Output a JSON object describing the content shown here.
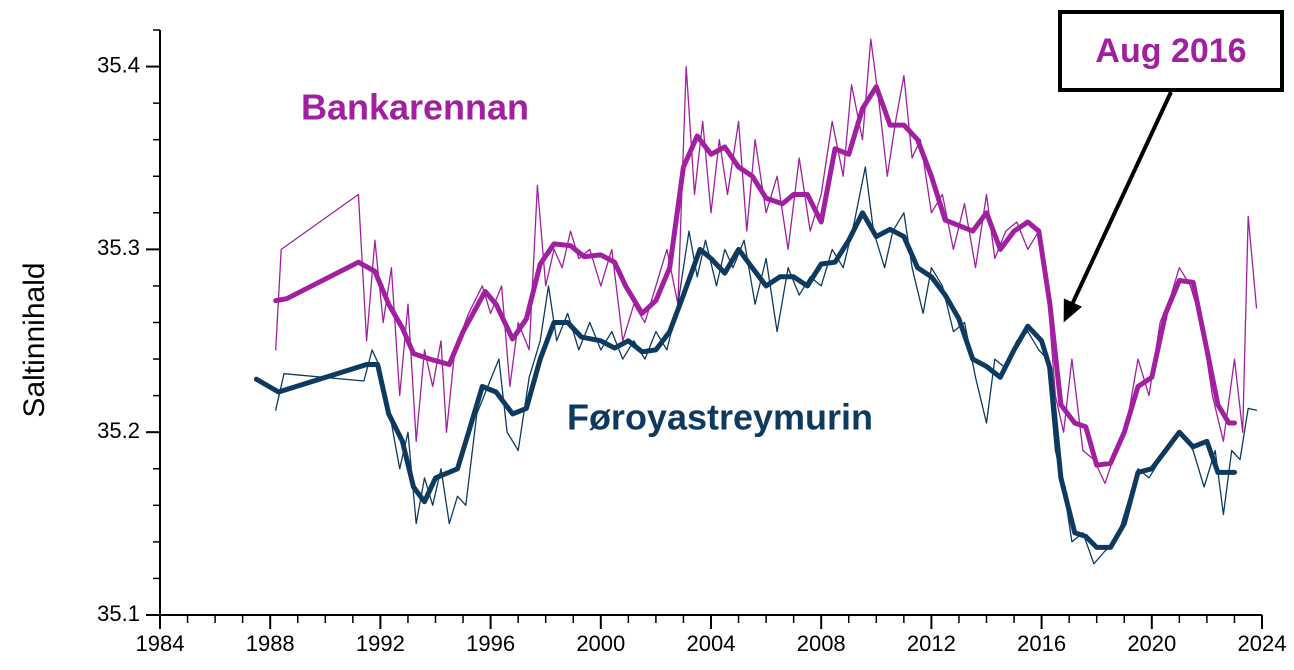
{
  "chart_data": {
    "type": "line",
    "ylabel": "Saltinnihald",
    "xlim": [
      1984,
      2024
    ],
    "xticks": [
      1984,
      1988,
      1992,
      1996,
      2000,
      2004,
      2008,
      2012,
      2016,
      2020,
      2024
    ],
    "xminorticks": [
      1985,
      1986,
      1987,
      1989,
      1990,
      1991,
      1993,
      1994,
      1995,
      1997,
      1998,
      1999,
      2001,
      2002,
      2003,
      2005,
      2006,
      2007,
      2009,
      2010,
      2011,
      2013,
      2014,
      2015,
      2017,
      2018,
      2019,
      2021,
      2022,
      2023
    ],
    "ylim": [
      35.1,
      35.42
    ],
    "yticks": [
      35.1,
      35.2,
      35.3,
      35.4
    ],
    "yminorticks": [
      35.12,
      35.14,
      35.16,
      35.18,
      35.22,
      35.24,
      35.26,
      35.28,
      35.32,
      35.34,
      35.36,
      35.38,
      35.42
    ],
    "annotation": {
      "text": "Aug 2016",
      "x": 2016.8,
      "y": 35.26
    },
    "series": [
      {
        "color": "#a020a0",
        "line_width": 1.3,
        "x": [
          1988.2,
          1988.4,
          1991.2,
          1991.5,
          1991.8,
          1992.1,
          1992.4,
          1992.7,
          1993.0,
          1993.3,
          1993.6,
          1993.9,
          1994.2,
          1994.4,
          1994.7,
          1995.2,
          1995.7,
          1996.0,
          1996.4,
          1996.7,
          1997.0,
          1997.4,
          1997.7,
          1998.0,
          1998.3,
          1998.6,
          1998.9,
          1999.2,
          1999.6,
          2000.0,
          2000.4,
          2000.8,
          2001.2,
          2001.6,
          2002.0,
          2002.4,
          2002.8,
          2003.1,
          2003.4,
          2003.7,
          2004.0,
          2004.3,
          2004.6,
          2005.0,
          2005.3,
          2005.6,
          2006.0,
          2006.4,
          2006.8,
          2007.2,
          2007.6,
          2008.0,
          2008.4,
          2008.8,
          2009.1,
          2009.5,
          2009.8,
          2010.1,
          2010.4,
          2010.7,
          2011.0,
          2011.3,
          2011.6,
          2012.0,
          2012.4,
          2012.8,
          2013.2,
          2013.6,
          2014.0,
          2014.3,
          2014.7,
          2015.1,
          2015.5,
          2015.9,
          2016.2,
          2016.5,
          2016.8,
          2017.1,
          2017.5,
          2017.9,
          2018.3,
          2018.7,
          2019.1,
          2019.5,
          2019.9,
          2020.3,
          2020.7,
          2021.0,
          2021.4,
          2021.8,
          2022.2,
          2022.6,
          2023.0,
          2023.3,
          2023.5,
          2023.8
        ],
        "values": [
          35.245,
          35.3,
          35.33,
          35.25,
          35.305,
          35.26,
          35.29,
          35.22,
          35.27,
          35.195,
          35.245,
          35.225,
          35.25,
          35.2,
          35.245,
          35.265,
          35.28,
          35.265,
          35.28,
          35.225,
          35.26,
          35.245,
          35.335,
          35.28,
          35.3,
          35.29,
          35.31,
          35.295,
          35.3,
          35.28,
          35.3,
          35.25,
          35.27,
          35.26,
          35.28,
          35.3,
          35.27,
          35.4,
          35.33,
          35.37,
          35.32,
          35.36,
          35.33,
          35.37,
          35.31,
          35.36,
          35.32,
          35.34,
          35.3,
          35.35,
          35.31,
          35.33,
          35.37,
          35.34,
          35.39,
          35.36,
          35.415,
          35.38,
          35.34,
          35.37,
          35.395,
          35.35,
          35.36,
          35.32,
          35.33,
          35.3,
          35.325,
          35.29,
          35.33,
          35.295,
          35.31,
          35.315,
          35.3,
          35.31,
          35.28,
          35.22,
          35.2,
          35.24,
          35.19,
          35.185,
          35.172,
          35.19,
          35.205,
          35.24,
          35.22,
          35.26,
          35.275,
          35.29,
          35.28,
          35.26,
          35.22,
          35.195,
          35.24,
          35.2,
          35.318,
          35.268
        ]
      },
      {
        "color": "#0f3a5f",
        "line_width": 1.3,
        "x": [
          1988.2,
          1988.5,
          1991.4,
          1991.7,
          1992.0,
          1992.4,
          1992.7,
          1993.0,
          1993.3,
          1993.6,
          1993.9,
          1994.2,
          1994.5,
          1994.8,
          1995.1,
          1995.5,
          1995.9,
          1996.3,
          1996.6,
          1997.0,
          1997.4,
          1997.8,
          1998.1,
          1998.4,
          1998.8,
          1999.2,
          1999.6,
          2000.0,
          2000.4,
          2000.8,
          2001.2,
          2001.6,
          2002.0,
          2002.4,
          2002.8,
          2003.2,
          2003.5,
          2003.8,
          2004.2,
          2004.5,
          2004.8,
          2005.2,
          2005.6,
          2006.0,
          2006.4,
          2006.8,
          2007.2,
          2007.6,
          2008.0,
          2008.4,
          2008.8,
          2009.2,
          2009.6,
          2009.9,
          2010.3,
          2010.6,
          2011.0,
          2011.3,
          2011.7,
          2012.0,
          2012.4,
          2012.8,
          2013.2,
          2013.6,
          2014.0,
          2014.3,
          2014.7,
          2015.1,
          2015.5,
          2015.9,
          2016.2,
          2016.5,
          2016.8,
          2017.1,
          2017.5,
          2017.9,
          2018.3,
          2018.7,
          2019.1,
          2019.5,
          2019.9,
          2020.3,
          2020.7,
          2021.1,
          2021.5,
          2021.9,
          2022.3,
          2022.6,
          2022.9,
          2023.2,
          2023.5,
          2023.8
        ],
        "values": [
          35.212,
          35.232,
          35.228,
          35.245,
          35.235,
          35.205,
          35.18,
          35.2,
          35.15,
          35.175,
          35.16,
          35.18,
          35.15,
          35.165,
          35.16,
          35.21,
          35.225,
          35.24,
          35.2,
          35.19,
          35.23,
          35.25,
          35.28,
          35.25,
          35.265,
          35.245,
          35.26,
          35.245,
          35.255,
          35.24,
          35.25,
          35.24,
          35.255,
          35.245,
          35.27,
          35.31,
          35.285,
          35.305,
          35.28,
          35.3,
          35.29,
          35.305,
          35.27,
          35.295,
          35.255,
          35.29,
          35.275,
          35.285,
          35.28,
          35.3,
          35.29,
          35.315,
          35.345,
          35.31,
          35.29,
          35.31,
          35.32,
          35.29,
          35.265,
          35.29,
          35.28,
          35.255,
          35.26,
          35.23,
          35.205,
          35.24,
          35.235,
          35.25,
          35.255,
          35.245,
          35.24,
          35.19,
          35.17,
          35.14,
          35.145,
          35.128,
          35.135,
          35.14,
          35.16,
          35.18,
          35.175,
          35.185,
          35.195,
          35.2,
          35.19,
          35.17,
          35.19,
          35.155,
          35.19,
          35.185,
          35.213,
          35.212
        ]
      },
      {
        "name": "Bankarennan",
        "color": "#a020a0",
        "line_width": 5,
        "x": [
          1988.2,
          1988.6,
          1991.2,
          1991.8,
          1992.3,
          1992.8,
          1993.2,
          1993.8,
          1994.5,
          1995.0,
          1995.8,
          1996.2,
          1996.8,
          1997.3,
          1997.8,
          1998.3,
          1998.9,
          1999.4,
          2000.0,
          2000.5,
          2000.9,
          2001.5,
          2002.0,
          2002.5,
          2003.0,
          2003.5,
          2004.0,
          2004.5,
          2005.0,
          2005.5,
          2006.0,
          2006.6,
          2007.0,
          2007.5,
          2008.0,
          2008.5,
          2009.0,
          2009.5,
          2010.0,
          2010.5,
          2011.0,
          2011.5,
          2012.0,
          2012.5,
          2013.0,
          2013.5,
          2014.0,
          2014.5,
          2015.0,
          2015.5,
          2015.9,
          2016.3,
          2016.7,
          2017.2,
          2017.6,
          2018.0,
          2018.5,
          2019.0,
          2019.5,
          2020.0,
          2020.5,
          2021.0,
          2021.5,
          2022.0,
          2022.4,
          2022.8,
          2023.0
        ],
        "values": [
          35.272,
          35.273,
          35.293,
          35.288,
          35.27,
          35.257,
          35.243,
          35.24,
          35.237,
          35.255,
          35.277,
          35.27,
          35.251,
          35.262,
          35.292,
          35.303,
          35.302,
          35.296,
          35.297,
          35.293,
          35.28,
          35.265,
          35.272,
          35.29,
          35.345,
          35.362,
          35.352,
          35.356,
          35.345,
          35.34,
          35.328,
          35.325,
          35.33,
          35.33,
          35.315,
          35.355,
          35.352,
          35.377,
          35.389,
          35.368,
          35.368,
          35.36,
          35.34,
          35.316,
          35.313,
          35.31,
          35.32,
          35.3,
          35.31,
          35.315,
          35.31,
          35.27,
          35.215,
          35.205,
          35.203,
          35.182,
          35.183,
          35.2,
          35.225,
          35.23,
          35.265,
          35.283,
          35.282,
          35.245,
          35.215,
          35.205,
          35.205
        ]
      },
      {
        "name": "Føroyastreymurin",
        "color": "#0f3a5f",
        "line_width": 5,
        "x": [
          1987.5,
          1988.3,
          1991.5,
          1991.9,
          1992.3,
          1992.8,
          1993.2,
          1993.6,
          1994.0,
          1994.8,
          1995.2,
          1995.7,
          1996.2,
          1996.8,
          1997.3,
          1997.8,
          1998.3,
          1998.8,
          1999.3,
          2000.0,
          2000.5,
          2001.0,
          2001.5,
          2002.0,
          2002.5,
          2003.0,
          2003.6,
          2004.0,
          2004.5,
          2005.0,
          2005.5,
          2006.0,
          2006.5,
          2007.0,
          2007.5,
          2008.0,
          2008.5,
          2009.0,
          2009.5,
          2010.0,
          2010.5,
          2011.0,
          2011.5,
          2012.0,
          2012.5,
          2013.0,
          2013.5,
          2014.0,
          2014.5,
          2015.0,
          2015.5,
          2016.0,
          2016.3,
          2016.7,
          2017.2,
          2017.6,
          2018.0,
          2018.5,
          2019.0,
          2019.5,
          2020.0,
          2020.5,
          2021.0,
          2021.5,
          2022.0,
          2022.4,
          2023.0
        ],
        "values": [
          35.229,
          35.222,
          35.237,
          35.237,
          35.21,
          35.195,
          35.17,
          35.162,
          35.175,
          35.18,
          35.2,
          35.225,
          35.222,
          35.21,
          35.213,
          35.24,
          35.26,
          35.26,
          35.252,
          35.25,
          35.246,
          35.25,
          35.244,
          35.245,
          35.255,
          35.275,
          35.3,
          35.295,
          35.287,
          35.3,
          35.29,
          35.28,
          35.285,
          35.285,
          35.28,
          35.292,
          35.293,
          35.305,
          35.32,
          35.307,
          35.311,
          35.307,
          35.29,
          35.285,
          35.275,
          35.262,
          35.24,
          35.236,
          35.23,
          35.245,
          35.258,
          35.25,
          35.235,
          35.175,
          35.145,
          35.143,
          35.137,
          35.137,
          35.15,
          35.178,
          35.18,
          35.19,
          35.2,
          35.192,
          35.195,
          35.178,
          35.178
        ]
      }
    ]
  }
}
